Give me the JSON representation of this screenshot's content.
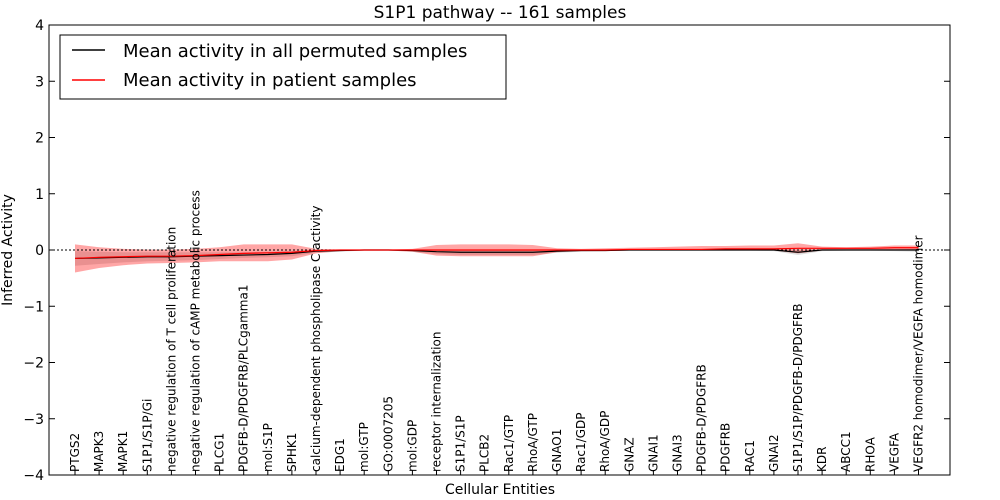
{
  "chart_data": {
    "type": "line",
    "title": "S1P1 pathway -- 161 samples",
    "xlabel": "Cellular Entities",
    "ylabel": "Inferred Activity",
    "ylim": [
      -4,
      4
    ],
    "yticks": [
      "−4",
      "−3",
      "−2",
      "−1",
      "0",
      "1",
      "2",
      "3",
      "4"
    ],
    "legend_position": "top-left",
    "categories": [
      "PTGS2",
      "MAPK3",
      "MAPK1",
      "S1P1/S1P/Gi",
      "negative regulation of T cell proliferation",
      "negative regulation of cAMP metabolic process",
      "PLCG1",
      "PDGFB-D/PDGFRB/PLCgamma1",
      "mol:S1P",
      "SPHK1",
      "calcium-dependent phospholipase C activity",
      "EDG1",
      "mol:GTP",
      "GO:0007205",
      "mol:GDP",
      "receptor internalization",
      "S1P1/S1P",
      "PLCB2",
      "Rac1/GTP",
      "RhoA/GTP",
      "GNAO1",
      "Rac1/GDP",
      "RhoA/GDP",
      "GNAZ",
      "GNAI1",
      "GNAI3",
      "PDGFB-D/PDGFRB",
      "PDGFRB",
      "RAC1",
      "GNAI2",
      "S1P1/S1P/PDGFB-D/PDGFRB",
      "KDR",
      "ABCC1",
      "RHOA",
      "VEGFA",
      "VEGFR2 homodimer/VEGFA homodimer"
    ],
    "series": [
      {
        "name": "Mean activity in all permuted samples",
        "color": "#000000",
        "values": [
          -0.15,
          -0.14,
          -0.13,
          -0.12,
          -0.12,
          -0.11,
          -0.1,
          -0.09,
          -0.08,
          -0.06,
          -0.02,
          -0.01,
          0.0,
          0.0,
          -0.01,
          -0.03,
          -0.04,
          -0.04,
          -0.04,
          -0.04,
          -0.02,
          -0.01,
          -0.01,
          0.0,
          0.0,
          0.0,
          0.0,
          0.0,
          0.0,
          0.0,
          -0.04,
          0.0,
          0.0,
          0.0,
          0.0,
          0.0
        ],
        "band_upper": [
          -0.02,
          -0.03,
          -0.04,
          -0.04,
          -0.04,
          -0.04,
          -0.04,
          -0.04,
          -0.03,
          -0.02,
          0.0,
          0.01,
          0.01,
          0.01,
          0.01,
          0.0,
          0.0,
          0.0,
          0.0,
          0.0,
          0.01,
          0.01,
          0.01,
          0.01,
          0.01,
          0.01,
          0.01,
          0.01,
          0.01,
          0.01,
          0.0,
          0.01,
          0.01,
          0.01,
          0.01,
          0.02
        ],
        "band_lower": [
          -0.28,
          -0.25,
          -0.22,
          -0.2,
          -0.19,
          -0.18,
          -0.16,
          -0.14,
          -0.13,
          -0.11,
          -0.05,
          -0.03,
          -0.01,
          -0.01,
          -0.03,
          -0.07,
          -0.09,
          -0.09,
          -0.09,
          -0.09,
          -0.05,
          -0.03,
          -0.02,
          -0.01,
          -0.01,
          -0.01,
          -0.01,
          -0.01,
          -0.01,
          -0.02,
          -0.09,
          -0.02,
          -0.01,
          -0.01,
          -0.02,
          -0.03
        ]
      },
      {
        "name": "Mean activity in patient samples",
        "color": "#ff0000",
        "values": [
          -0.15,
          -0.13,
          -0.12,
          -0.11,
          -0.11,
          -0.1,
          -0.08,
          -0.06,
          -0.05,
          -0.04,
          -0.01,
          0.0,
          0.0,
          0.0,
          0.0,
          0.0,
          0.0,
          0.0,
          0.0,
          0.0,
          0.0,
          0.0,
          0.0,
          0.01,
          0.01,
          0.01,
          0.01,
          0.02,
          0.02,
          0.02,
          0.03,
          0.03,
          0.03,
          0.03,
          0.04,
          0.04
        ],
        "band_upper": [
          0.1,
          0.05,
          0.02,
          0.01,
          0.01,
          0.02,
          0.05,
          0.1,
          0.1,
          0.1,
          0.02,
          0.01,
          0.01,
          0.01,
          0.02,
          0.09,
          0.1,
          0.1,
          0.1,
          0.09,
          0.03,
          0.02,
          0.03,
          0.04,
          0.05,
          0.06,
          0.07,
          0.07,
          0.08,
          0.08,
          0.12,
          0.06,
          0.05,
          0.06,
          0.08,
          0.08
        ],
        "band_lower": [
          -0.4,
          -0.32,
          -0.27,
          -0.24,
          -0.23,
          -0.22,
          -0.2,
          -0.2,
          -0.2,
          -0.17,
          -0.06,
          -0.02,
          -0.01,
          -0.01,
          -0.03,
          -0.1,
          -0.11,
          -0.11,
          -0.11,
          -0.11,
          -0.04,
          -0.02,
          -0.02,
          -0.01,
          -0.01,
          -0.01,
          -0.01,
          -0.01,
          -0.01,
          -0.01,
          -0.06,
          -0.01,
          0.0,
          0.0,
          0.0,
          0.0
        ]
      }
    ]
  }
}
